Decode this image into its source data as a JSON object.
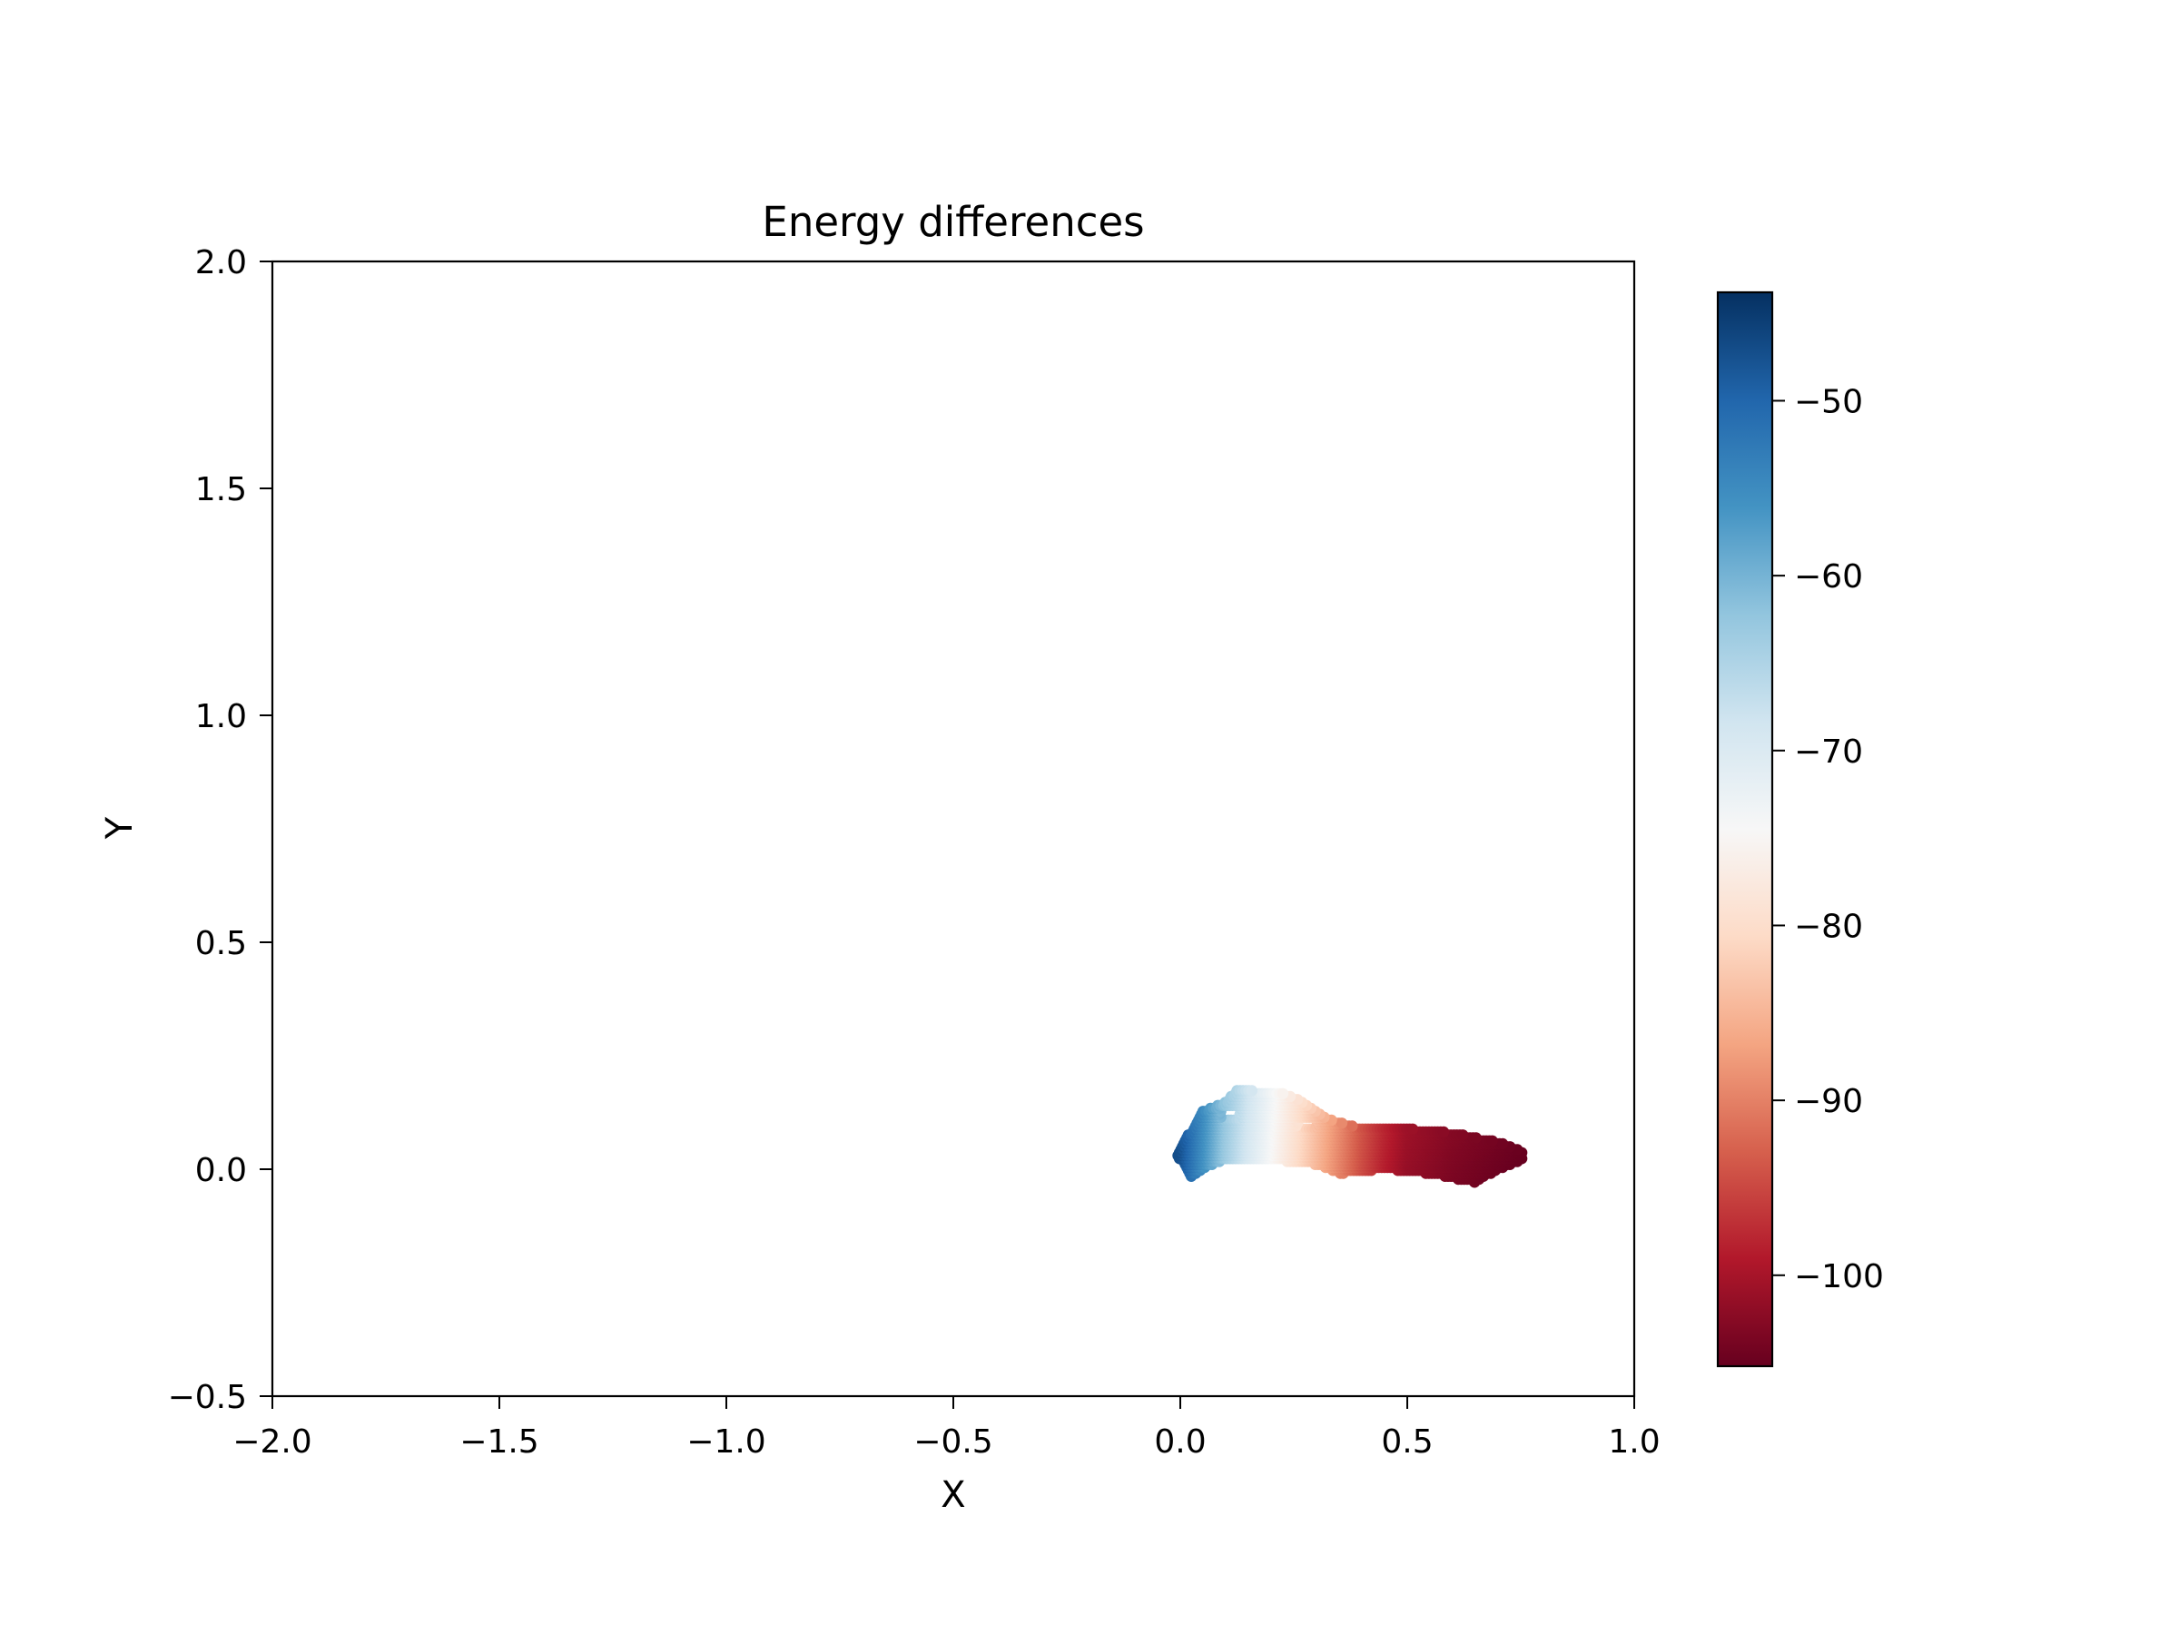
{
  "chart_data": {
    "type": "scatter",
    "title": "Energy differences",
    "xlabel": "X",
    "ylabel": "Y",
    "xlim": [
      -2.0,
      1.0
    ],
    "ylim": [
      -0.5,
      2.0
    ],
    "xticks": [
      -2.0,
      -1.5,
      -1.0,
      -0.5,
      0.0,
      0.5,
      1.0
    ],
    "xtick_labels": [
      "−2.0",
      "−1.5",
      "−1.0",
      "−0.5",
      "0.0",
      "0.5",
      "1.0"
    ],
    "yticks": [
      -0.5,
      0.0,
      0.5,
      1.0,
      1.5,
      2.0
    ],
    "ytick_labels": [
      "−0.5",
      "0.0",
      "0.5",
      "1.0",
      "1.5",
      "2.0"
    ],
    "grid": false,
    "colormap": "RdBu",
    "colorbar": {
      "range": [
        -105.2,
        -43.8
      ],
      "ticks": [
        -50,
        -60,
        -70,
        -80,
        -90,
        -100
      ],
      "tick_labels": [
        "−50",
        "−60",
        "−70",
        "−80",
        "−90",
        "−100"
      ]
    },
    "colormap_stops": [
      "#67001f",
      "#b2182b",
      "#d6604d",
      "#f4a582",
      "#fddbc7",
      "#f7f7f7",
      "#d1e5f0",
      "#92c5de",
      "#4393c3",
      "#2166ac",
      "#053061"
    ],
    "region": {
      "description_points": "cloud of points spanning x 0.0 to 0.75, y -0.03 to 0.18",
      "value_at_x": [
        {
          "x": 0.0,
          "value": -47
        },
        {
          "x": 0.05,
          "value": -55
        },
        {
          "x": 0.1,
          "value": -63
        },
        {
          "x": 0.15,
          "value": -69
        },
        {
          "x": 0.2,
          "value": -74
        },
        {
          "x": 0.25,
          "value": -79
        },
        {
          "x": 0.3,
          "value": -84
        },
        {
          "x": 0.35,
          "value": -89
        },
        {
          "x": 0.4,
          "value": -94
        },
        {
          "x": 0.45,
          "value": -98
        },
        {
          "x": 0.5,
          "value": -101
        },
        {
          "x": 0.6,
          "value": -103
        },
        {
          "x": 0.75,
          "value": -105
        }
      ],
      "upper_boundary": [
        {
          "x": 0.0,
          "y": 0.04
        },
        {
          "x": 0.02,
          "y": 0.08
        },
        {
          "x": 0.05,
          "y": 0.13
        },
        {
          "x": 0.1,
          "y": 0.15
        },
        {
          "x": 0.13,
          "y": 0.18
        },
        {
          "x": 0.17,
          "y": 0.17
        },
        {
          "x": 0.22,
          "y": 0.17
        },
        {
          "x": 0.27,
          "y": 0.15
        },
        {
          "x": 0.33,
          "y": 0.11
        },
        {
          "x": 0.4,
          "y": 0.09
        },
        {
          "x": 0.5,
          "y": 0.09
        },
        {
          "x": 0.6,
          "y": 0.08
        },
        {
          "x": 0.7,
          "y": 0.06
        },
        {
          "x": 0.75,
          "y": 0.04
        }
      ],
      "lower_boundary": [
        {
          "x": 0.0,
          "y": 0.02
        },
        {
          "x": 0.02,
          "y": -0.02
        },
        {
          "x": 0.05,
          "y": 0.0
        },
        {
          "x": 0.1,
          "y": 0.02
        },
        {
          "x": 0.2,
          "y": 0.02
        },
        {
          "x": 0.3,
          "y": 0.01
        },
        {
          "x": 0.35,
          "y": -0.01
        },
        {
          "x": 0.45,
          "y": 0.0
        },
        {
          "x": 0.55,
          "y": -0.01
        },
        {
          "x": 0.65,
          "y": -0.03
        },
        {
          "x": 0.7,
          "y": 0.0
        },
        {
          "x": 0.75,
          "y": 0.02
        }
      ]
    }
  }
}
